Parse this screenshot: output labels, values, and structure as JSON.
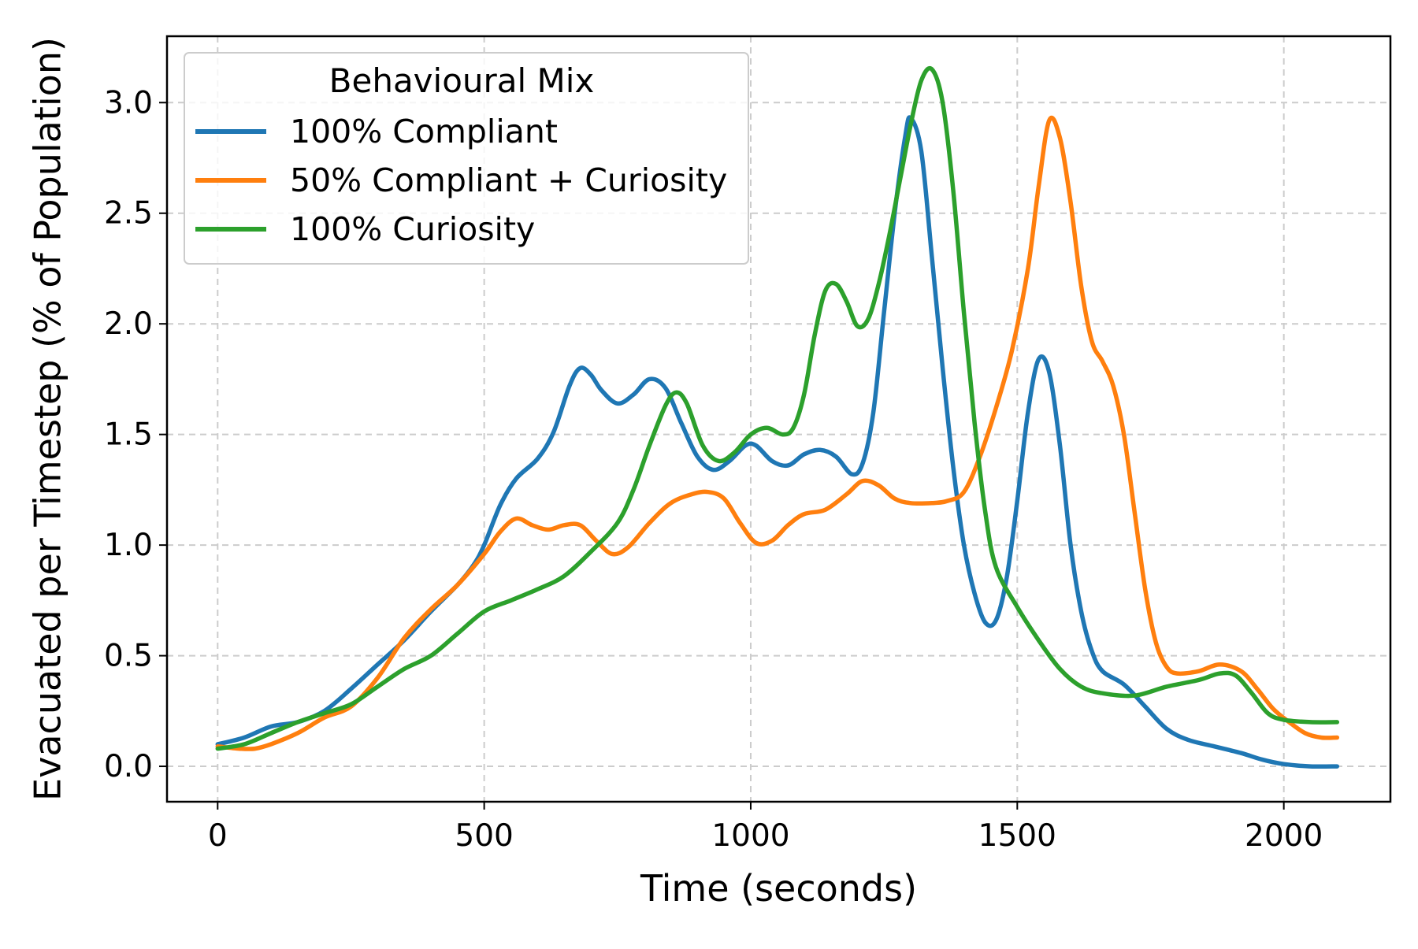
{
  "chart_data": {
    "type": "line",
    "title": "",
    "xlabel": "Time (seconds)",
    "ylabel": "Evacuated per Timestep (% of Population)",
    "xlim": [
      -95,
      2200
    ],
    "ylim": [
      -0.16,
      3.3
    ],
    "xticks": [
      0,
      500,
      1000,
      1500,
      2000
    ],
    "xtick_labels": [
      "0",
      "500",
      "1000",
      "1500",
      "2000"
    ],
    "yticks": [
      0.0,
      0.5,
      1.0,
      1.5,
      2.0,
      2.5,
      3.0
    ],
    "ytick_labels": [
      "0.0",
      "0.5",
      "1.0",
      "1.5",
      "2.0",
      "2.5",
      "3.0"
    ],
    "grid": true,
    "legend": {
      "title": "Behavioural Mix",
      "position": "top-left"
    },
    "series": [
      {
        "name": "100% Compliant",
        "color": "#1f77b4",
        "points": [
          [
            0,
            0.1
          ],
          [
            50,
            0.13
          ],
          [
            100,
            0.18
          ],
          [
            150,
            0.2
          ],
          [
            200,
            0.25
          ],
          [
            250,
            0.35
          ],
          [
            300,
            0.46
          ],
          [
            350,
            0.57
          ],
          [
            400,
            0.7
          ],
          [
            450,
            0.82
          ],
          [
            480,
            0.91
          ],
          [
            500,
            1.0
          ],
          [
            530,
            1.18
          ],
          [
            560,
            1.3
          ],
          [
            600,
            1.39
          ],
          [
            630,
            1.51
          ],
          [
            660,
            1.72
          ],
          [
            680,
            1.8
          ],
          [
            700,
            1.77
          ],
          [
            720,
            1.7
          ],
          [
            750,
            1.64
          ],
          [
            780,
            1.68
          ],
          [
            810,
            1.75
          ],
          [
            840,
            1.71
          ],
          [
            870,
            1.55
          ],
          [
            900,
            1.4
          ],
          [
            930,
            1.34
          ],
          [
            960,
            1.38
          ],
          [
            990,
            1.45
          ],
          [
            1010,
            1.45
          ],
          [
            1040,
            1.38
          ],
          [
            1070,
            1.36
          ],
          [
            1100,
            1.41
          ],
          [
            1130,
            1.43
          ],
          [
            1160,
            1.4
          ],
          [
            1190,
            1.32
          ],
          [
            1210,
            1.37
          ],
          [
            1230,
            1.6
          ],
          [
            1250,
            2.05
          ],
          [
            1270,
            2.5
          ],
          [
            1290,
            2.85
          ],
          [
            1300,
            2.93
          ],
          [
            1320,
            2.78
          ],
          [
            1340,
            2.3
          ],
          [
            1360,
            1.8
          ],
          [
            1380,
            1.35
          ],
          [
            1400,
            1.0
          ],
          [
            1420,
            0.78
          ],
          [
            1440,
            0.65
          ],
          [
            1460,
            0.66
          ],
          [
            1480,
            0.85
          ],
          [
            1500,
            1.2
          ],
          [
            1520,
            1.6
          ],
          [
            1540,
            1.84
          ],
          [
            1560,
            1.78
          ],
          [
            1580,
            1.45
          ],
          [
            1600,
            1.0
          ],
          [
            1620,
            0.7
          ],
          [
            1640,
            0.52
          ],
          [
            1660,
            0.43
          ],
          [
            1700,
            0.37
          ],
          [
            1740,
            0.27
          ],
          [
            1780,
            0.17
          ],
          [
            1820,
            0.12
          ],
          [
            1870,
            0.09
          ],
          [
            1920,
            0.06
          ],
          [
            1960,
            0.03
          ],
          [
            2000,
            0.01
          ],
          [
            2050,
            0.0
          ],
          [
            2100,
            0.0
          ]
        ]
      },
      {
        "name": "50% Compliant + Curiosity",
        "color": "#ff7f0e",
        "points": [
          [
            0,
            0.09
          ],
          [
            40,
            0.08
          ],
          [
            70,
            0.08
          ],
          [
            100,
            0.1
          ],
          [
            150,
            0.15
          ],
          [
            200,
            0.22
          ],
          [
            250,
            0.27
          ],
          [
            300,
            0.4
          ],
          [
            350,
            0.58
          ],
          [
            400,
            0.71
          ],
          [
            450,
            0.82
          ],
          [
            500,
            0.96
          ],
          [
            530,
            1.06
          ],
          [
            560,
            1.12
          ],
          [
            590,
            1.09
          ],
          [
            620,
            1.07
          ],
          [
            650,
            1.09
          ],
          [
            680,
            1.09
          ],
          [
            710,
            1.02
          ],
          [
            740,
            0.96
          ],
          [
            770,
            0.99
          ],
          [
            810,
            1.1
          ],
          [
            850,
            1.19
          ],
          [
            890,
            1.23
          ],
          [
            920,
            1.24
          ],
          [
            950,
            1.21
          ],
          [
            980,
            1.1
          ],
          [
            1010,
            1.01
          ],
          [
            1040,
            1.02
          ],
          [
            1070,
            1.09
          ],
          [
            1100,
            1.14
          ],
          [
            1140,
            1.16
          ],
          [
            1180,
            1.23
          ],
          [
            1210,
            1.29
          ],
          [
            1240,
            1.27
          ],
          [
            1270,
            1.21
          ],
          [
            1300,
            1.19
          ],
          [
            1340,
            1.19
          ],
          [
            1370,
            1.2
          ],
          [
            1400,
            1.24
          ],
          [
            1430,
            1.4
          ],
          [
            1460,
            1.62
          ],
          [
            1490,
            1.88
          ],
          [
            1520,
            2.25
          ],
          [
            1540,
            2.62
          ],
          [
            1560,
            2.92
          ],
          [
            1580,
            2.84
          ],
          [
            1600,
            2.55
          ],
          [
            1620,
            2.17
          ],
          [
            1640,
            1.92
          ],
          [
            1660,
            1.83
          ],
          [
            1680,
            1.72
          ],
          [
            1700,
            1.5
          ],
          [
            1720,
            1.15
          ],
          [
            1740,
            0.8
          ],
          [
            1760,
            0.56
          ],
          [
            1780,
            0.45
          ],
          [
            1800,
            0.42
          ],
          [
            1840,
            0.43
          ],
          [
            1880,
            0.46
          ],
          [
            1920,
            0.43
          ],
          [
            1950,
            0.35
          ],
          [
            1980,
            0.26
          ],
          [
            2010,
            0.2
          ],
          [
            2040,
            0.15
          ],
          [
            2070,
            0.13
          ],
          [
            2100,
            0.13
          ]
        ]
      },
      {
        "name": "100% Curiosity",
        "color": "#2ca02c",
        "points": [
          [
            0,
            0.08
          ],
          [
            50,
            0.1
          ],
          [
            100,
            0.15
          ],
          [
            150,
            0.2
          ],
          [
            200,
            0.24
          ],
          [
            250,
            0.28
          ],
          [
            300,
            0.36
          ],
          [
            350,
            0.44
          ],
          [
            400,
            0.5
          ],
          [
            450,
            0.6
          ],
          [
            500,
            0.7
          ],
          [
            550,
            0.75
          ],
          [
            600,
            0.8
          ],
          [
            650,
            0.86
          ],
          [
            700,
            0.97
          ],
          [
            750,
            1.1
          ],
          [
            780,
            1.25
          ],
          [
            810,
            1.45
          ],
          [
            840,
            1.63
          ],
          [
            860,
            1.69
          ],
          [
            880,
            1.64
          ],
          [
            910,
            1.45
          ],
          [
            940,
            1.38
          ],
          [
            970,
            1.42
          ],
          [
            1000,
            1.5
          ],
          [
            1030,
            1.53
          ],
          [
            1060,
            1.5
          ],
          [
            1080,
            1.53
          ],
          [
            1100,
            1.68
          ],
          [
            1120,
            1.95
          ],
          [
            1140,
            2.15
          ],
          [
            1160,
            2.18
          ],
          [
            1180,
            2.1
          ],
          [
            1200,
            1.99
          ],
          [
            1220,
            2.02
          ],
          [
            1240,
            2.18
          ],
          [
            1260,
            2.4
          ],
          [
            1280,
            2.65
          ],
          [
            1300,
            2.9
          ],
          [
            1320,
            3.1
          ],
          [
            1340,
            3.15
          ],
          [
            1360,
            3.0
          ],
          [
            1380,
            2.6
          ],
          [
            1400,
            2.05
          ],
          [
            1420,
            1.55
          ],
          [
            1440,
            1.15
          ],
          [
            1460,
            0.9
          ],
          [
            1500,
            0.72
          ],
          [
            1540,
            0.57
          ],
          [
            1580,
            0.44
          ],
          [
            1620,
            0.36
          ],
          [
            1660,
            0.33
          ],
          [
            1720,
            0.32
          ],
          [
            1780,
            0.36
          ],
          [
            1840,
            0.39
          ],
          [
            1880,
            0.42
          ],
          [
            1910,
            0.41
          ],
          [
            1940,
            0.33
          ],
          [
            1970,
            0.24
          ],
          [
            2000,
            0.21
          ],
          [
            2050,
            0.2
          ],
          [
            2100,
            0.2
          ]
        ]
      }
    ]
  }
}
